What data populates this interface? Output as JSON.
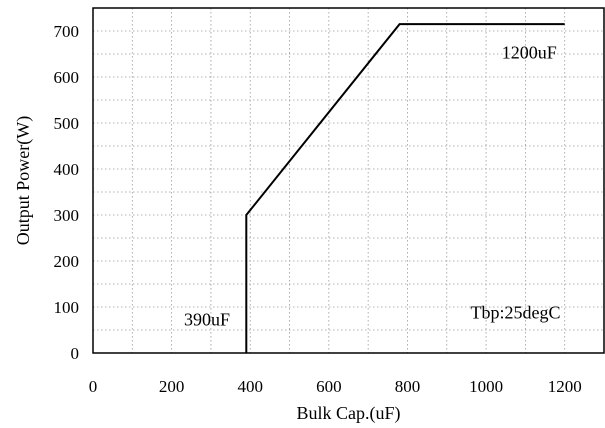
{
  "chart_data": {
    "type": "line",
    "title": "",
    "xlabel": "Bulk Cap.(uF)",
    "ylabel": "Output Power(W)",
    "xlim": [
      0,
      1300
    ],
    "ylim": [
      0,
      750
    ],
    "x_ticks": [
      0,
      200,
      400,
      600,
      800,
      1000,
      1200
    ],
    "y_ticks": [
      0,
      100,
      200,
      300,
      400,
      500,
      600,
      700
    ],
    "x_tick_labels": [
      "0",
      "200",
      "400",
      "600",
      "800",
      "1000",
      "1200"
    ],
    "y_tick_labels": [
      "0",
      "100",
      "200",
      "300",
      "400",
      "500",
      "600",
      "700"
    ],
    "grid": true,
    "series": [
      {
        "x": [
          390,
          390,
          780,
          1200
        ],
        "y": [
          0,
          300,
          715,
          715
        ]
      }
    ],
    "annotations": [
      {
        "text": "1200uF",
        "x": 1110,
        "y": 640
      },
      {
        "text": "390uF",
        "x": 290,
        "y": 60
      },
      {
        "text": "Tbp:25degC",
        "x": 1075,
        "y": 75
      }
    ]
  }
}
